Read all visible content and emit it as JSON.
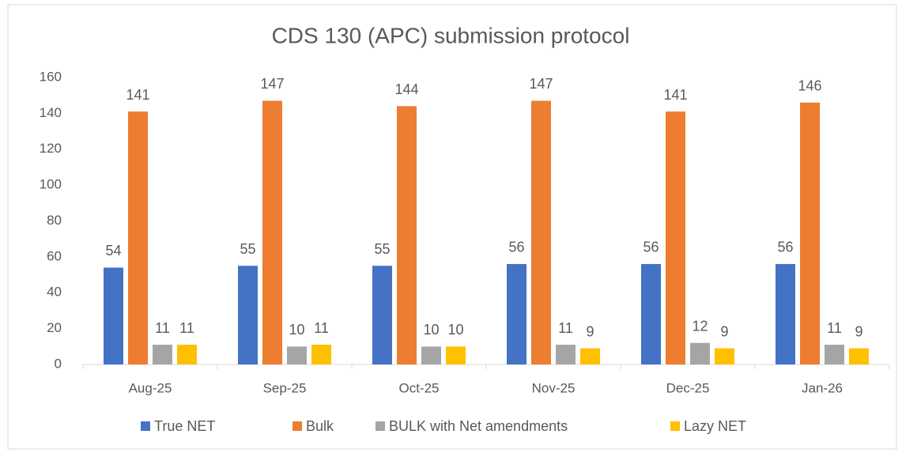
{
  "chart_data": {
    "type": "bar",
    "title": "CDS 130 (APC) submission protocol",
    "categories": [
      "Aug-25",
      "Sep-25",
      "Oct-25",
      "Nov-25",
      "Dec-25",
      "Jan-26"
    ],
    "series": [
      {
        "name": "True NET",
        "color": "#4472c4",
        "values": [
          54,
          55,
          55,
          56,
          56,
          56
        ]
      },
      {
        "name": "Bulk",
        "color": "#ed7d31",
        "values": [
          141,
          147,
          144,
          147,
          141,
          146
        ]
      },
      {
        "name": "BULK with Net amendments",
        "color": "#a5a5a5",
        "values": [
          11,
          10,
          10,
          11,
          12,
          11
        ]
      },
      {
        "name": "Lazy NET",
        "color": "#ffc000",
        "values": [
          11,
          11,
          10,
          9,
          9,
          9
        ]
      }
    ],
    "ylim": [
      0,
      160
    ],
    "yticks": [
      0,
      20,
      40,
      60,
      80,
      100,
      120,
      140,
      160
    ],
    "grid": false,
    "legend": "bottom"
  }
}
